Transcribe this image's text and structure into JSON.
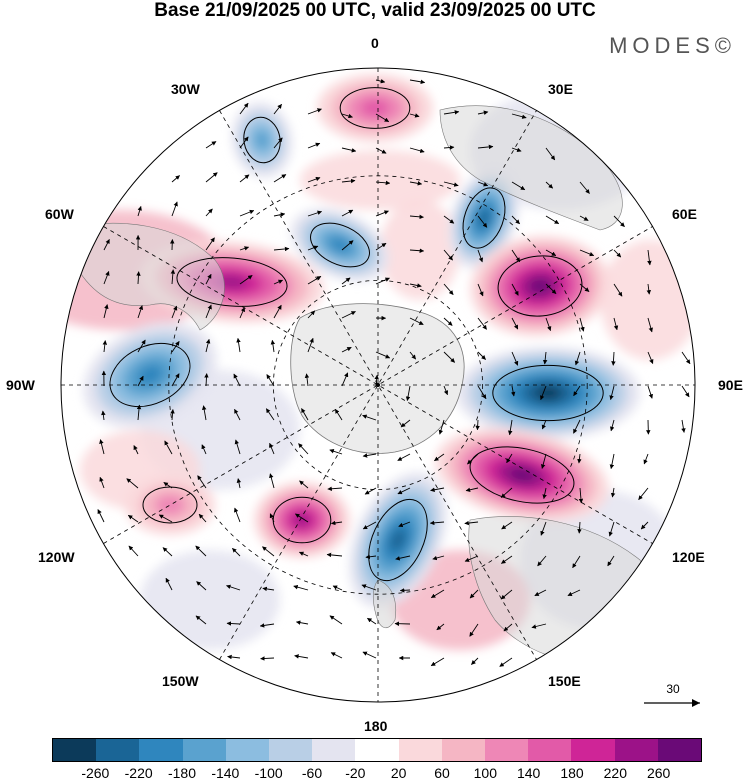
{
  "header": {
    "title": "Base 21/09/2025 00 UTC, valid 23/09/2025 00 UTC",
    "brand": "MODES©"
  },
  "map": {
    "projection": "south-polar-stereographic",
    "longitude_labels": {
      "lon_0": "0",
      "lon_30e": "30E",
      "lon_60e": "60E",
      "lon_90e": "90E",
      "lon_120e": "120E",
      "lon_150e": "150E",
      "lon_180": "180",
      "lon_150w": "150W",
      "lon_120w": "120W",
      "lon_90w": "90W",
      "lon_60w": "60W",
      "lon_30w": "30W"
    },
    "wind_scale": {
      "label": "30"
    },
    "anomaly_centers": [
      {
        "name": "anomaly-positive-0",
        "sign": "positive",
        "max_level": 140
      },
      {
        "name": "anomaly-negative-30w",
        "sign": "negative",
        "max_level": -140
      },
      {
        "name": "anomaly-negative-30e",
        "sign": "negative",
        "max_level": -220
      },
      {
        "name": "anomaly-positive-60w",
        "sign": "positive",
        "max_level": 220
      },
      {
        "name": "anomaly-negative-south-atlantic",
        "sign": "negative",
        "max_level": -180
      },
      {
        "name": "anomaly-positive-60e",
        "sign": "positive",
        "max_level": 260
      },
      {
        "name": "anomaly-negative-90w",
        "sign": "negative",
        "max_level": -180
      },
      {
        "name": "anomaly-negative-90e",
        "sign": "negative",
        "max_level": -260
      },
      {
        "name": "anomaly-positive-120e",
        "sign": "positive",
        "max_level": 260
      },
      {
        "name": "anomaly-positive-150w",
        "sign": "positive",
        "max_level": 220
      },
      {
        "name": "anomaly-negative-180",
        "sign": "negative",
        "max_level": -220
      },
      {
        "name": "anomaly-positive-120w",
        "sign": "positive",
        "max_level": 100
      }
    ]
  },
  "colorbar": {
    "colors": [
      "#0c3a5a",
      "#1a6596",
      "#2f86be",
      "#5aa2cf",
      "#8cbde0",
      "#b9cfe6",
      "#e4e4f0",
      "#ffffff",
      "#fad9dc",
      "#f5b6c4",
      "#ee87b6",
      "#e25aa8",
      "#cf2597",
      "#9c1288",
      "#6a0a77"
    ],
    "tick_labels": [
      "-260",
      "-220",
      "-180",
      "-140",
      "-100",
      "-60",
      "-20",
      "20",
      "60",
      "100",
      "140",
      "180",
      "220",
      "260"
    ]
  }
}
